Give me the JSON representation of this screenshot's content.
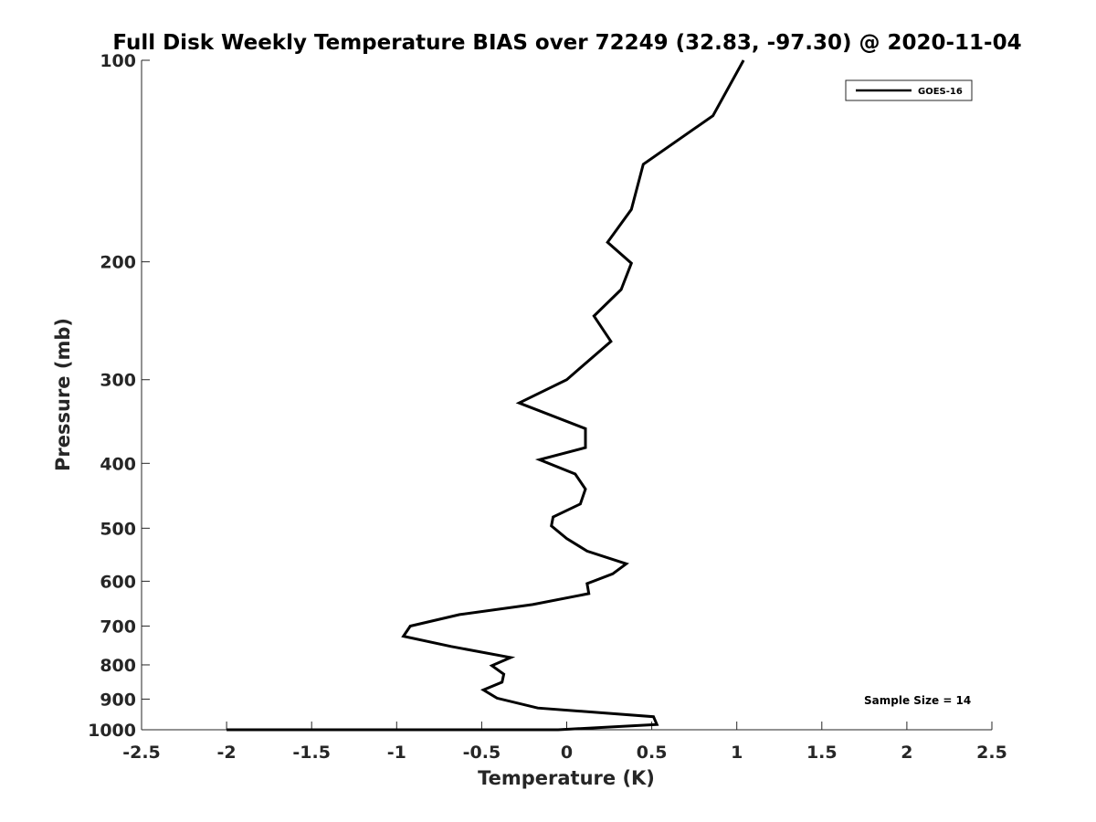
{
  "chart_data": {
    "type": "line",
    "title": "Full Disk Weekly Temperature BIAS over 72249 (32.83, -97.30) @ 2020-11-04",
    "xlabel": "Temperature (K)",
    "ylabel": "Pressure (mb)",
    "xlim": [
      -2.5,
      2.5
    ],
    "ylim": [
      100,
      1000
    ],
    "y_scale": "log",
    "y_reversed": true,
    "grid": false,
    "legend_position": "top-right",
    "x_ticks": [
      -2.5,
      -2,
      -1.5,
      -1,
      -0.5,
      0,
      0.5,
      1,
      1.5,
      2,
      2.5
    ],
    "x_tick_labels": [
      "-2.5",
      "-2",
      "-1.5",
      "-1",
      "-0.5",
      "0",
      "0.5",
      "1",
      "1.5",
      "2",
      "2.5"
    ],
    "y_ticks": [
      100,
      200,
      300,
      400,
      500,
      600,
      700,
      800,
      900,
      1000
    ],
    "y_tick_labels": [
      "100",
      "200",
      "300",
      "400",
      "500",
      "600",
      "700",
      "800",
      "900",
      "1000"
    ],
    "series": [
      {
        "name": "GOES-16",
        "color": "#000000",
        "points": [
          [
            1.04,
            100
          ],
          [
            0.86,
            121
          ],
          [
            0.45,
            143
          ],
          [
            0.38,
            167
          ],
          [
            0.24,
            187
          ],
          [
            0.38,
            201
          ],
          [
            0.32,
            220
          ],
          [
            0.16,
            241
          ],
          [
            0.26,
            263
          ],
          [
            0.0,
            300
          ],
          [
            -0.28,
            325
          ],
          [
            0.11,
            355
          ],
          [
            0.11,
            379
          ],
          [
            -0.16,
            395
          ],
          [
            0.05,
            415
          ],
          [
            0.11,
            437
          ],
          [
            0.08,
            460
          ],
          [
            -0.08,
            481
          ],
          [
            -0.09,
            496
          ],
          [
            0.0,
            518
          ],
          [
            0.12,
            541
          ],
          [
            0.35,
            565
          ],
          [
            0.27,
            585
          ],
          [
            0.12,
            605
          ],
          [
            0.13,
            626
          ],
          [
            -0.2,
            650
          ],
          [
            -0.63,
            673
          ],
          [
            -0.92,
            700
          ],
          [
            -0.96,
            725
          ],
          [
            -0.68,
            751
          ],
          [
            -0.33,
            780
          ],
          [
            -0.44,
            802
          ],
          [
            -0.37,
            826
          ],
          [
            -0.38,
            849
          ],
          [
            -0.49,
            872
          ],
          [
            -0.41,
            897
          ],
          [
            -0.17,
            928
          ],
          [
            0.51,
            956
          ],
          [
            0.53,
            982
          ],
          [
            -0.05,
            1000
          ],
          [
            -1.05,
            1000
          ],
          [
            -1.6,
            1000
          ],
          [
            -2.0,
            1000
          ],
          [
            -0.54,
            1000
          ]
        ]
      }
    ],
    "annotation": "Sample Size = 14"
  }
}
